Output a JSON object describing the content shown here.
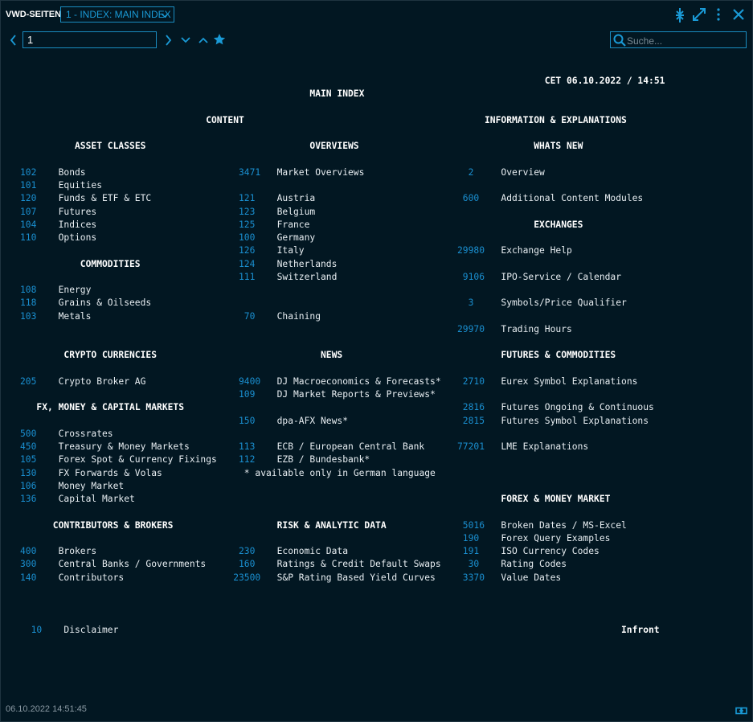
{
  "header": {
    "app_title": "VWD-SEITEN",
    "page_select": "1 - INDEX: MAIN INDEX",
    "page_input": "1",
    "search_placeholder": "Suche...",
    "icons": [
      "chevron-left-icon",
      "chevron-right-icon",
      "chevron-down-icon",
      "chevron-up-icon",
      "star-icon",
      "collapse-icon",
      "expand-icon",
      "more-icon",
      "close-icon",
      "search-icon",
      "link-icon"
    ],
    "accent_color": "#1a9ad6"
  },
  "page": {
    "timestamp": "CET 06.10.2022 / 14:51",
    "title": "MAIN INDEX",
    "content_heading": "CONTENT",
    "info_heading": "INFORMATION & EXPLANATIONS",
    "note": "* available only in German language",
    "brand": "Infront",
    "groups": [
      {
        "id": "asset",
        "heading": "ASSET CLASSES",
        "entries": [
          {
            "code": "102",
            "label": "Bonds"
          },
          {
            "code": "101",
            "label": "Equities"
          },
          {
            "code": "120",
            "label": "Funds & ETF & ETC"
          },
          {
            "code": "107",
            "label": "Futures"
          },
          {
            "code": "104",
            "label": "Indices"
          },
          {
            "code": "110",
            "label": "Options"
          }
        ]
      },
      {
        "id": "commod",
        "heading": "COMMODITIES",
        "entries": [
          {
            "code": "108",
            "label": "Energy"
          },
          {
            "code": "118",
            "label": "Grains & Oilseeds"
          },
          {
            "code": "103",
            "label": "Metals"
          }
        ]
      },
      {
        "id": "crypto",
        "heading": "CRYPTO CURRENCIES",
        "entries": [
          {
            "code": "205",
            "label": "Crypto Broker AG"
          }
        ]
      },
      {
        "id": "fx",
        "heading": "FX, MONEY & CAPITAL MARKETS",
        "entries": [
          {
            "code": "500",
            "label": "Crossrates"
          },
          {
            "code": "450",
            "label": "Treasury & Money Markets"
          },
          {
            "code": "105",
            "label": "Forex Spot & Currency Fixings"
          },
          {
            "code": "130",
            "label": "FX Forwards & Volas"
          },
          {
            "code": "106",
            "label": "Money Market"
          },
          {
            "code": "136",
            "label": "Capital Market"
          }
        ]
      },
      {
        "id": "contrib",
        "heading": "CONTRIBUTORS & BROKERS",
        "entries": [
          {
            "code": "400",
            "label": "Brokers"
          },
          {
            "code": "300",
            "label": "Central Banks / Governments"
          },
          {
            "code": "140",
            "label": "Contributors"
          }
        ]
      },
      {
        "id": "overviews",
        "heading": "OVERVIEWS",
        "entries": [
          {
            "code": "3471",
            "label": "Market Overviews"
          },
          {
            "code": "121",
            "label": "Austria"
          },
          {
            "code": "123",
            "label": "Belgium"
          },
          {
            "code": "125",
            "label": "France"
          },
          {
            "code": "100",
            "label": "Germany"
          },
          {
            "code": "126",
            "label": "Italy"
          },
          {
            "code": "124",
            "label": "Netherlands"
          },
          {
            "code": "111",
            "label": "Switzerland"
          },
          {
            "code": "70",
            "label": "Chaining"
          }
        ]
      },
      {
        "id": "news",
        "heading": "NEWS",
        "entries": [
          {
            "code": "9400",
            "label": "DJ Macroeconomics & Forecasts*"
          },
          {
            "code": "109",
            "label": "DJ Market Reports & Previews*"
          },
          {
            "code": "150",
            "label": "dpa-AFX News*"
          },
          {
            "code": "113",
            "label": "ECB / European Central Bank"
          },
          {
            "code": "112",
            "label": "EZB / Bundesbank*"
          }
        ]
      },
      {
        "id": "risk",
        "heading": "RISK & ANALYTIC DATA",
        "entries": [
          {
            "code": "230",
            "label": "Economic Data"
          },
          {
            "code": "160",
            "label": "Ratings & Credit Default Swaps"
          },
          {
            "code": "23500",
            "label": "S&P Rating Based Yield Curves"
          }
        ]
      },
      {
        "id": "whatsnew",
        "heading": "WHATS NEW",
        "entries": [
          {
            "code": "2",
            "label": "Overview"
          },
          {
            "code": "600",
            "label": "Additional Content Modules"
          }
        ]
      },
      {
        "id": "exch",
        "heading": "EXCHANGES",
        "entries": [
          {
            "code": "29980",
            "label": "Exchange Help"
          },
          {
            "code": "9106",
            "label": "IPO-Service / Calendar"
          },
          {
            "code": "3",
            "label": "Symbols/Price Qualifier"
          },
          {
            "code": "29970",
            "label": "Trading Hours"
          }
        ]
      },
      {
        "id": "futures",
        "heading": "FUTURES & COMMODITIES",
        "entries": [
          {
            "code": "2710",
            "label": "Eurex Symbol Explanations"
          },
          {
            "code": "2816",
            "label": "Futures Ongoing & Continuous"
          },
          {
            "code": "2815",
            "label": "Futures Symbol Explanations"
          },
          {
            "code": "77201",
            "label": "LME Explanations"
          }
        ]
      },
      {
        "id": "forex",
        "heading": "FOREX & MONEY MARKET",
        "entries": [
          {
            "code": "5016",
            "label": "Broken Dates / MS-Excel"
          },
          {
            "code": "190",
            "label": "Forex Query Examples"
          },
          {
            "code": "191",
            "label": "ISO Currency Codes"
          },
          {
            "code": "30",
            "label": "Rating Codes"
          },
          {
            "code": "3370",
            "label": "Value Dates"
          }
        ]
      },
      {
        "id": "footer",
        "heading": "",
        "entries": [
          {
            "code": "10",
            "label": "Disclaimer"
          }
        ]
      }
    ]
  },
  "footer": {
    "updated": "06.10.2022 14:51:45"
  },
  "colors": {
    "background": "#021722",
    "link": "#1a8fd0",
    "text": "#e8eef2"
  }
}
